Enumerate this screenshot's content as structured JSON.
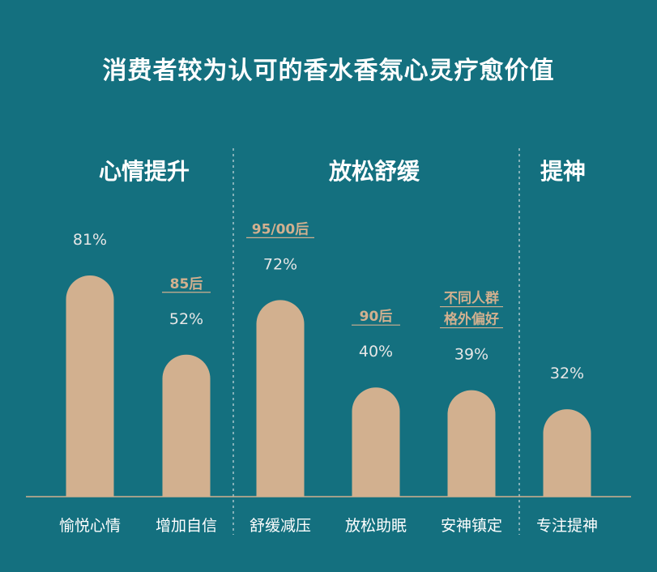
{
  "title": "消费者较为认可的香水香氛心灵疗愈价值",
  "colors": {
    "background": "#14707f",
    "bar": "#d2b08f",
    "text": "#ffffff",
    "muted_text": "#e6e6e6",
    "note_text": "#d2b08f",
    "axis": "#d2b08f",
    "divider": "#bfd3d6"
  },
  "chart_data": {
    "type": "bar",
    "title": "消费者较为认可的香水香氛心灵疗愈价值",
    "ylim": [
      0,
      100
    ],
    "grid": false,
    "value_unit": "%",
    "groups": [
      {
        "name": "心情提升",
        "categories": [
          "愉悦心情",
          "增加自信"
        ]
      },
      {
        "name": "放松舒缓",
        "categories": [
          "舒缓减压",
          "放松助眠",
          "安神镇定"
        ]
      },
      {
        "name": "提神",
        "categories": [
          "专注提神"
        ]
      }
    ],
    "categories": [
      "愉悦心情",
      "增加自信",
      "舒缓减压",
      "放松助眠",
      "安神镇定",
      "专注提神"
    ],
    "values": [
      81,
      52,
      72,
      40,
      39,
      32
    ],
    "data_labels": [
      "81%",
      "52%",
      "72%",
      "40%",
      "39%",
      "32%"
    ],
    "annotations": [
      {
        "category": "增加自信",
        "lines": [
          "85后"
        ]
      },
      {
        "category": "舒缓减压",
        "lines": [
          "95/00后"
        ]
      },
      {
        "category": "放松助眠",
        "lines": [
          "90后"
        ]
      },
      {
        "category": "安神镇定",
        "lines": [
          "不同人群",
          "格外偏好"
        ]
      }
    ]
  }
}
